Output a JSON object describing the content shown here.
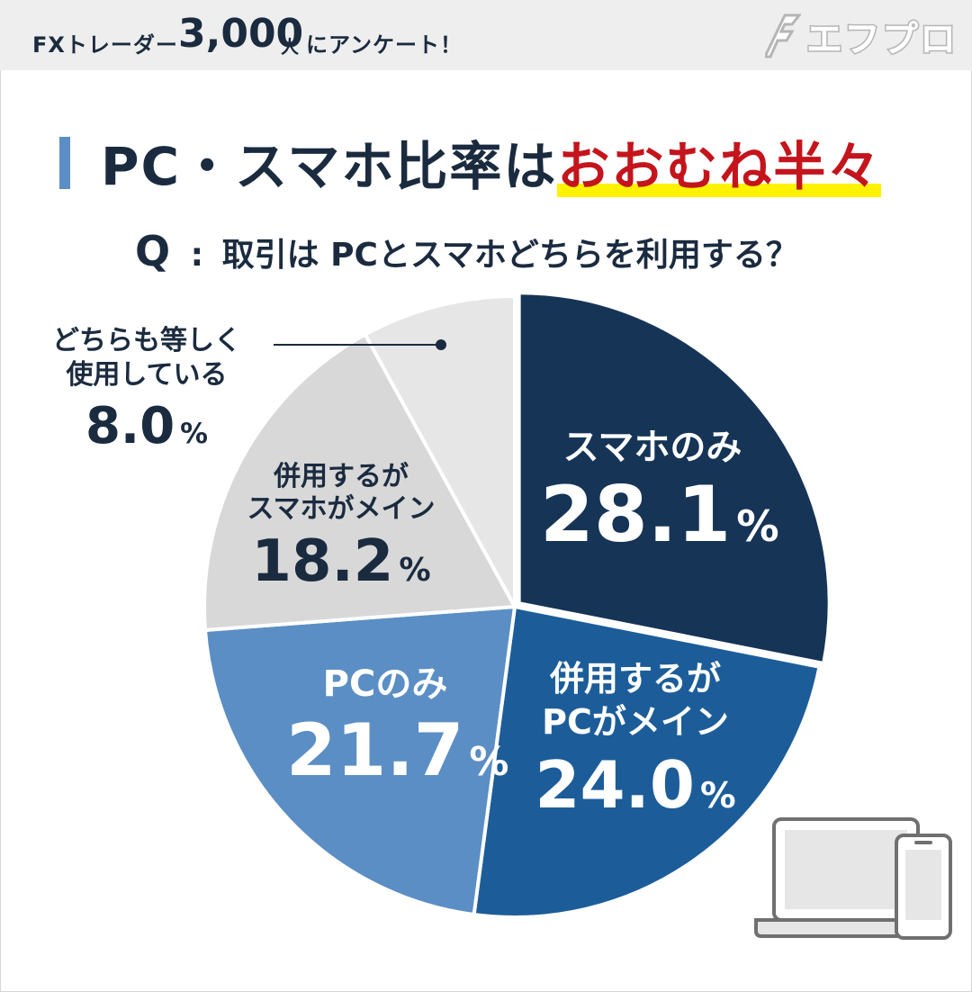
{
  "header": {
    "prefix": "FXトレーダー",
    "count": "3,000",
    "unit": "人",
    "suffix": "にアンケート！",
    "logo_text": "エフプロ"
  },
  "headline": {
    "main": "PC・スマホ比率は",
    "accent": "おおむね半々"
  },
  "question": {
    "marker": "Q",
    "colon": ":",
    "text": "取引は PCとスマホどちらを利用する？"
  },
  "colors": {
    "dark_navy": "#163456",
    "mid_blue": "#1c5d99",
    "light_blue": "#5b8ec4",
    "light_gray": "#d8d8d8",
    "lighter_gray": "#e6e6e6",
    "accent_red": "#c4141c",
    "highlight_yellow": "#fff200"
  },
  "chart_data": {
    "type": "pie",
    "slices": [
      {
        "name": "スマホのみ",
        "value": 28.1,
        "color": "#163456"
      },
      {
        "name": "併用するが PCがメイン",
        "value": 24.0,
        "color": "#1c5d99"
      },
      {
        "name": "PCのみ",
        "value": 21.7,
        "color": "#5b8ec4"
      },
      {
        "name": "併用するが スマホがメイン",
        "value": 18.2,
        "color": "#d8d8d8"
      },
      {
        "name": "どちらも等しく 使用している",
        "value": 8.0,
        "color": "#e6e6e6"
      }
    ],
    "unit": "%"
  },
  "labels": {
    "smartphone_only": {
      "name": "スマホのみ",
      "value": "28.1",
      "pct": "%"
    },
    "pc_main": {
      "name1": "併用するが",
      "name2": "PCがメイン",
      "value": "24.0",
      "pct": "%"
    },
    "pc_only": {
      "name": "PCのみ",
      "value": "21.7",
      "pct": "%"
    },
    "smartphone_main": {
      "name1": "併用するが",
      "name2": "スマホがメイン",
      "value": "18.2",
      "pct": "%"
    },
    "equal": {
      "name": "どちらも等しく\n使用している",
      "value": "8.0",
      "pct": "%"
    }
  }
}
